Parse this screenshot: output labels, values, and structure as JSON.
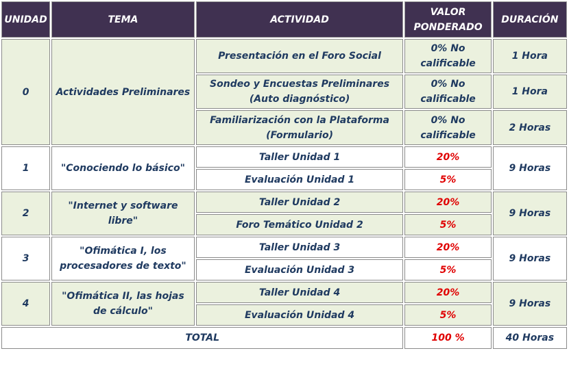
{
  "headers": {
    "unidad": "UNIDAD",
    "tema": "TEMA",
    "actividad": "ACTIVIDAD",
    "valor_line1": "VALOR",
    "valor_line2": "PONDERADO",
    "duracion": "DURACIÓN"
  },
  "unit0": {
    "num": "0",
    "tema": "Actividades Preliminares",
    "rows": [
      {
        "act1": "Presentación en el Foro Social",
        "act2": "",
        "val1": "0% No",
        "val2": "calificable",
        "dur": "1 Hora"
      },
      {
        "act1": "Sondeo y Encuestas Preliminares",
        "act2": "(Auto diagnóstico)",
        "val1": "0% No",
        "val2": "calificable",
        "dur": "1 Hora"
      },
      {
        "act1": "Familiarización con la Plataforma",
        "act2": "(Formulario)",
        "val1": "0% No",
        "val2": "calificable",
        "dur": "2 Horas"
      }
    ]
  },
  "units": [
    {
      "num": "1",
      "tema1": "\"Conociendo lo básico\"",
      "tema2": "",
      "act_a": "Taller Unidad 1",
      "val_a": "20%",
      "act_b": "Evaluación Unidad 1",
      "val_b": "5%",
      "dur": "9 Horas"
    },
    {
      "num": "2",
      "tema1": "\"Internet y software",
      "tema2": "libre\"",
      "act_a": "Taller Unidad 2",
      "val_a": "20%",
      "act_b": "Foro Temático Unidad 2",
      "val_b": "5%",
      "dur": "9 Horas"
    },
    {
      "num": "3",
      "tema1": "\"Ofimática I, los",
      "tema2": "procesadores de texto\"",
      "act_a": "Taller Unidad 3",
      "val_a": "20%",
      "act_b": "Evaluación Unidad 3",
      "val_b": "5%",
      "dur": "9 Horas"
    },
    {
      "num": "4",
      "tema1": "\"Ofimática II, las hojas",
      "tema2": "de cálculo\"",
      "act_a": "Taller Unidad 4",
      "val_a": "20%",
      "act_b": "Evaluación Unidad 4",
      "val_b": "5%",
      "dur": "9 Horas"
    }
  ],
  "total": {
    "label": "TOTAL",
    "valor": "100 %",
    "duracion": "40 Horas"
  },
  "colors": {
    "header_bg": "#403151",
    "green_row": "#ebf1de",
    "text": "#1f3a60",
    "percent": "#e00000"
  }
}
